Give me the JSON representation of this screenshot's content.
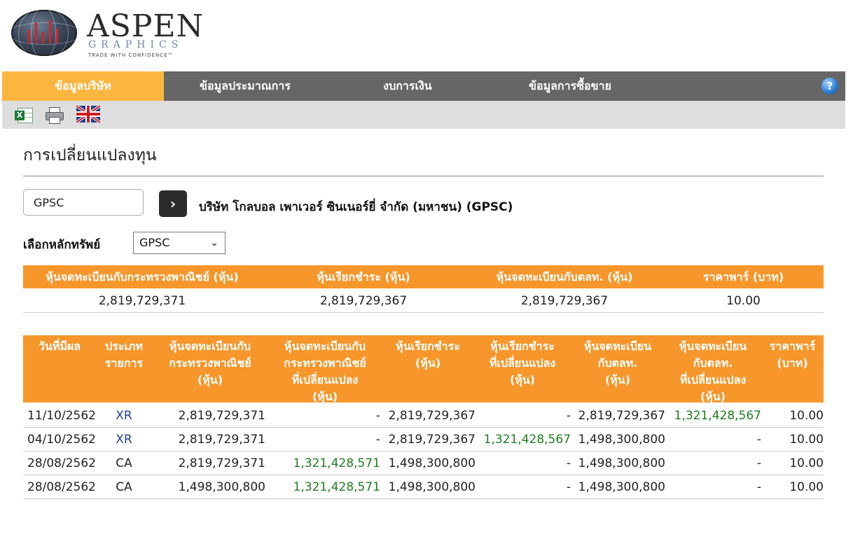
{
  "logo": {
    "word": "ASPEN",
    "sub": "GRAPHICS",
    "tagline": "TRADE WITH CONFIDENCE™"
  },
  "nav": {
    "tabs": [
      "ข้อมูลบริษัท",
      "ข้อมูลประมาณการ",
      "งบการเงิน",
      "ข้อมูลการซื้อขาย"
    ],
    "help_label": "?"
  },
  "page": {
    "title": "การเปลี่ยนแปลงทุน"
  },
  "search": {
    "value": "GPSC",
    "go_label": "›",
    "company_name": "บริษัท โกลบอล เพาเวอร์ ซินเนอร์ยี่ จำกัด (มหาชน) (GPSC)"
  },
  "security_select": {
    "label": "เลือกหลักทรัพย์",
    "selected": "GPSC",
    "caret": "⌄"
  },
  "summary": {
    "headers": [
      "หุ้นจดทะเบียนกับกระทรวงพาณิชย์ (หุ้น)",
      "หุ้นเรียกชำระ (หุ้น)",
      "หุ้นจดทะเบียนกับตลท. (หุ้น)",
      "ราคาพาร์ (บาท)"
    ],
    "values": [
      "2,819,729,371",
      "2,819,729,367",
      "2,819,729,367",
      "10.00"
    ]
  },
  "history": {
    "headers": [
      [
        "วันที่มีผล"
      ],
      [
        "ประเภท",
        "รายการ"
      ],
      [
        "หุ้นจดทะเบียนกับ",
        "กระทรวงพาณิชย์",
        "(หุ้น)"
      ],
      [
        "หุ้นจดทะเบียนกับ",
        "กระทรวงพาณิชย์",
        "ที่เปลี่ยนแปลง",
        "(หุ้น)"
      ],
      [
        "หุ้นเรียกชำระ",
        "(หุ้น)"
      ],
      [
        "หุ้นเรียกชำระ",
        "ที่เปลี่ยนแปลง",
        "(หุ้น)"
      ],
      [
        "หุ้นจดทะเบียน",
        "กับตลท.",
        "(หุ้น)"
      ],
      [
        "หุ้นจดทะเบียน",
        "กับตลท.",
        "ที่เปลี่ยนแปลง",
        "(หุ้น)"
      ],
      [
        "ราคาพาร์",
        "(บาท)"
      ]
    ],
    "rows": [
      [
        "11/10/2562",
        "XR",
        "2,819,729,371",
        "-",
        "2,819,729,367",
        "-",
        "2,819,729,367",
        "1,321,428,567",
        "10.00"
      ],
      [
        "04/10/2562",
        "XR",
        "2,819,729,371",
        "-",
        "2,819,729,367",
        "1,321,428,567",
        "1,498,300,800",
        "-",
        "10.00"
      ],
      [
        "28/08/2562",
        "CA",
        "2,819,729,371",
        "1,321,428,571",
        "1,498,300,800",
        "-",
        "1,498,300,800",
        "-",
        "10.00"
      ],
      [
        "28/08/2562",
        "CA",
        "1,498,300,800",
        "1,321,428,571",
        "1,498,300,800",
        "-",
        "1,498,300,800",
        "-",
        "10.00"
      ]
    ]
  },
  "colors": {
    "nav_bg": "#666666",
    "active_tab": "#fbb640",
    "table_header": "#f7962a",
    "change_value": "#1e7d1e",
    "type_link": "#1c3f8c"
  }
}
